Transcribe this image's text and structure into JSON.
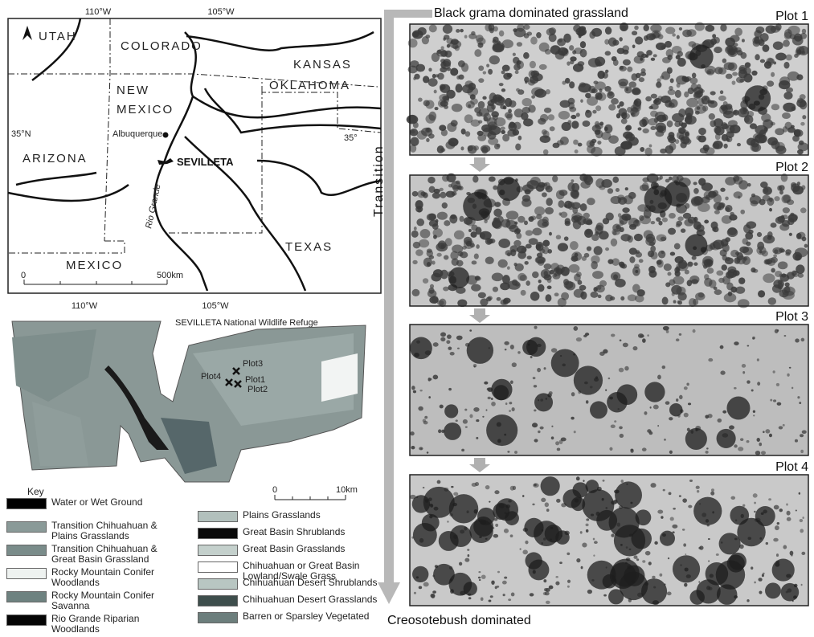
{
  "inset_map": {
    "lon_top": [
      "110°W",
      "105°W"
    ],
    "lon_bottom": [
      "110°W",
      "105°W"
    ],
    "lat_left": "35°N",
    "lat_right": "35°",
    "states": [
      "UTAH",
      "COLORADO",
      "KANSAS",
      "OKLAHOMA",
      "NEW",
      "MEXICO",
      "ARIZONA",
      "TEXAS",
      "MEXICO"
    ],
    "city": "Albuquerque",
    "river": "Rio Grande",
    "site": "SEVILLETA",
    "scale": {
      "start": "0",
      "end": "500km"
    }
  },
  "refuge_map": {
    "title": "SEVILLETA National Wildlife Refuge",
    "plots": [
      "Plot3",
      "Plot4",
      "Plot1",
      "Plot2"
    ],
    "scale": {
      "start": "0",
      "end": "10km"
    }
  },
  "key": {
    "title": "Key",
    "items": [
      {
        "label": "Water or Wet Ground",
        "color": "#000000"
      },
      {
        "label": "Transition Chihuahuan & Plains Grasslands",
        "color": "#8a9a98"
      },
      {
        "label": "Transition Chihuahuan & Great Basin Grassland",
        "color": "#7a8c8a"
      },
      {
        "label": "Rocky Mountain Conifer Woodlands",
        "color": "#eef2f0"
      },
      {
        "label": "Rocky Mountain Conifer Savanna",
        "color": "#6e8280"
      },
      {
        "label": "Rio Grande Riparian Woodlands",
        "color": "#050505"
      },
      {
        "label": "Plains Grasslands",
        "color": "#b2c0bc"
      },
      {
        "label": "Great Basin Shrublands",
        "color": "#0a0a0a"
      },
      {
        "label": "Great Basin Grasslands",
        "color": "#c4d0cc"
      },
      {
        "label": "Chihuahuan or Great Basin Lowland/Swale Grass",
        "color": "#ffffff"
      },
      {
        "label": "Chihuahuan Desert Shrublands",
        "color": "#b8c6c2"
      },
      {
        "label": "Chihuahuan Desert Grasslands",
        "color": "#3e4e4c"
      },
      {
        "label": "Barren or Sparsley Vegetated",
        "color": "#6c7e7c"
      }
    ]
  },
  "transect": {
    "top_label": "Black grama dominated grassland",
    "axis_label": "Transition",
    "bottom_label": "Creosotebush dominated",
    "plots": [
      "Plot 1",
      "Plot 2",
      "Plot 3",
      "Plot 4"
    ]
  }
}
